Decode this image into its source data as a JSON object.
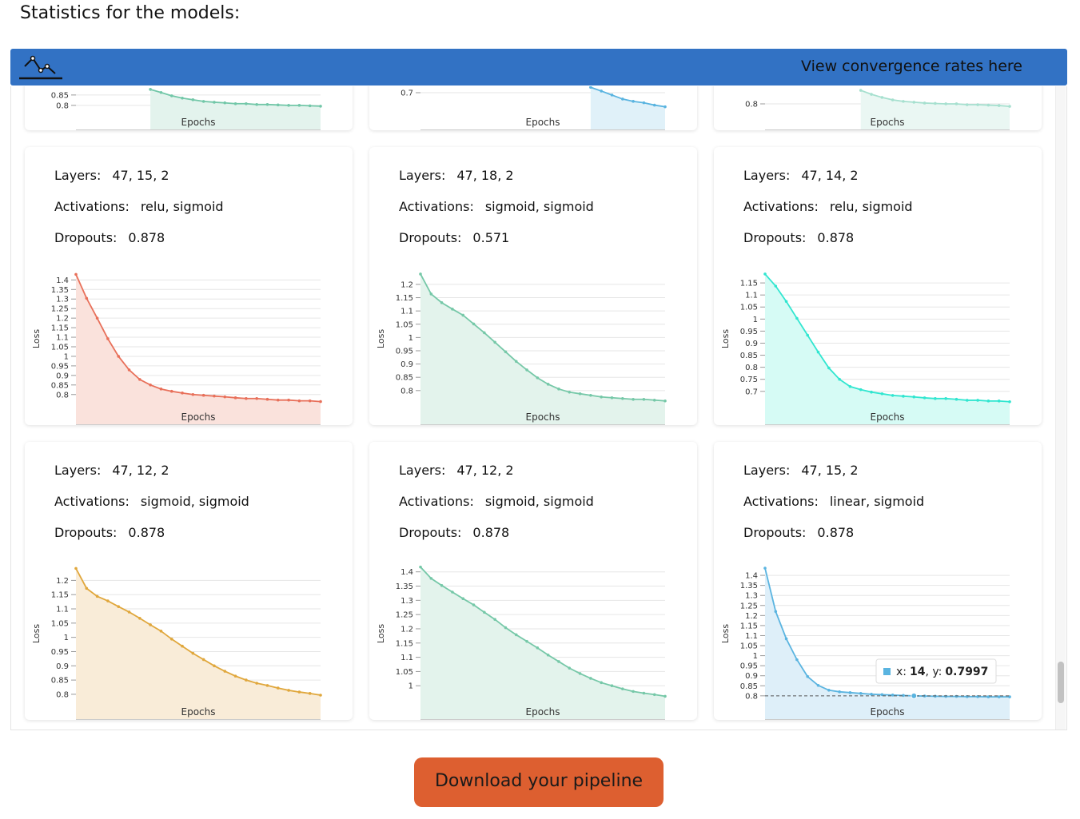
{
  "heading": "Statistics for the models:",
  "banner": {
    "text": "View convergence rates here"
  },
  "chart_data": [
    {
      "type": "area",
      "x_label": "Epochs",
      "color": "#72c7a8",
      "fill": "#e3f3ed",
      "xlim": [
        0,
        23
      ],
      "ylim": [
        0.68,
        1.435
      ],
      "yticks": [
        0.8,
        0.85
      ],
      "x": [
        7,
        8,
        9,
        10,
        11,
        12,
        13,
        14,
        15,
        16,
        17,
        18,
        19,
        20,
        21,
        22,
        23
      ],
      "values": [
        0.877,
        0.862,
        0.846,
        0.835,
        0.827,
        0.819,
        0.815,
        0.812,
        0.808,
        0.808,
        0.804,
        0.804,
        0.802,
        0.8,
        0.8,
        0.798,
        0.796
      ]
    },
    {
      "type": "area",
      "x_label": "Epochs",
      "color": "#5ab4e0",
      "fill": "#e0f1f9",
      "xlim": [
        0,
        23
      ],
      "ylim": [
        0.54,
        1.207
      ],
      "yticks": [
        0.7
      ],
      "x": [
        16,
        17,
        18,
        19,
        20,
        21,
        22,
        23
      ],
      "values": [
        0.723,
        0.707,
        0.69,
        0.673,
        0.663,
        0.657,
        0.647,
        0.64
      ]
    },
    {
      "type": "area",
      "x_label": "Epochs",
      "color": "#a6e0cf",
      "fill": "#eaf7f3",
      "xlim": [
        0,
        23
      ],
      "ylim": [
        0.673,
        1.427
      ],
      "yticks": [
        0.8
      ],
      "x": [
        9,
        10,
        11,
        12,
        13,
        14,
        15,
        16,
        17,
        18,
        19,
        20,
        21,
        22,
        23
      ],
      "values": [
        0.865,
        0.846,
        0.831,
        0.819,
        0.812,
        0.808,
        0.804,
        0.802,
        0.8,
        0.8,
        0.796,
        0.796,
        0.794,
        0.792,
        0.788
      ]
    },
    {
      "type": "area",
      "x_label": "Epochs",
      "y_label": "Loss",
      "color": "#e8705a",
      "fill": "#fae2dc",
      "xlim": [
        0,
        23
      ],
      "ylim": [
        0.64,
        1.46
      ],
      "yticks": [
        0.8,
        0.85,
        0.9,
        0.95,
        1,
        1.05,
        1.1,
        1.15,
        1.2,
        1.25,
        1.3,
        1.35,
        1.4
      ],
      "x": [
        0,
        1,
        2,
        3,
        4,
        5,
        6,
        7,
        8,
        9,
        10,
        11,
        12,
        13,
        14,
        15,
        16,
        17,
        18,
        19,
        20,
        21,
        22,
        23
      ],
      "values": [
        1.429,
        1.304,
        1.2,
        1.092,
        1.0,
        0.929,
        0.879,
        0.85,
        0.829,
        0.817,
        0.808,
        0.8,
        0.796,
        0.792,
        0.788,
        0.783,
        0.779,
        0.779,
        0.775,
        0.771,
        0.771,
        0.767,
        0.767,
        0.763
      ]
    },
    {
      "type": "area",
      "x_label": "Epochs",
      "y_label": "Loss",
      "color": "#76c8a8",
      "fill": "#e3f3ec",
      "xlim": [
        0,
        23
      ],
      "ylim": [
        0.67,
        1.26
      ],
      "yticks": [
        0.8,
        0.85,
        0.9,
        0.95,
        1,
        1.05,
        1.1,
        1.15,
        1.2
      ],
      "x": [
        0,
        1,
        2,
        3,
        4,
        5,
        6,
        7,
        8,
        9,
        10,
        11,
        12,
        13,
        14,
        15,
        16,
        17,
        18,
        19,
        20,
        21,
        22,
        23
      ],
      "values": [
        1.239,
        1.164,
        1.131,
        1.107,
        1.084,
        1.051,
        1.018,
        0.982,
        0.946,
        0.91,
        0.878,
        0.848,
        0.824,
        0.806,
        0.794,
        0.788,
        0.782,
        0.776,
        0.773,
        0.77,
        0.767,
        0.767,
        0.764,
        0.761
      ]
    },
    {
      "type": "area",
      "x_label": "Epochs",
      "y_label": "Loss",
      "color": "#31e6d0",
      "fill": "#d6fbf5",
      "xlim": [
        0,
        23
      ],
      "ylim": [
        0.56,
        1.21
      ],
      "yticks": [
        0.7,
        0.75,
        0.8,
        0.85,
        0.9,
        0.95,
        1,
        1.05,
        1.1,
        1.15
      ],
      "x": [
        0,
        1,
        2,
        3,
        4,
        5,
        6,
        7,
        8,
        9,
        10,
        11,
        12,
        13,
        14,
        15,
        16,
        17,
        18,
        19,
        20,
        21,
        22,
        23
      ],
      "values": [
        1.187,
        1.137,
        1.073,
        1.003,
        0.933,
        0.863,
        0.797,
        0.75,
        0.72,
        0.707,
        0.697,
        0.69,
        0.683,
        0.68,
        0.677,
        0.673,
        0.67,
        0.67,
        0.667,
        0.663,
        0.663,
        0.66,
        0.66,
        0.657
      ]
    },
    {
      "type": "area",
      "x_label": "Epochs",
      "y_label": "Loss",
      "color": "#e0a73c",
      "fill": "#f9ecd8",
      "xlim": [
        0,
        23
      ],
      "ylim": [
        0.71,
        1.26
      ],
      "yticks": [
        0.8,
        0.85,
        0.9,
        0.95,
        1,
        1.05,
        1.1,
        1.15,
        1.2
      ],
      "x": [
        0,
        1,
        2,
        3,
        4,
        5,
        6,
        7,
        8,
        9,
        10,
        11,
        12,
        13,
        14,
        15,
        16,
        17,
        18,
        19,
        20,
        21,
        22,
        23
      ],
      "values": [
        1.242,
        1.172,
        1.144,
        1.128,
        1.108,
        1.089,
        1.067,
        1.044,
        1.022,
        0.994,
        0.969,
        0.944,
        0.922,
        0.9,
        0.881,
        0.864,
        0.85,
        0.839,
        0.831,
        0.822,
        0.814,
        0.808,
        0.803,
        0.797
      ]
    },
    {
      "type": "area",
      "x_label": "Epochs",
      "y_label": "Loss",
      "color": "#76c8a8",
      "fill": "#e3f3ec",
      "xlim": [
        0,
        23
      ],
      "ylim": [
        0.88,
        1.43
      ],
      "yticks": [
        1,
        1.05,
        1.1,
        1.15,
        1.2,
        1.25,
        1.3,
        1.35,
        1.4
      ],
      "x": [
        0,
        1,
        2,
        3,
        4,
        5,
        6,
        7,
        8,
        9,
        10,
        11,
        12,
        13,
        14,
        15,
        16,
        17,
        18,
        19,
        20,
        21,
        22,
        23
      ],
      "values": [
        1.417,
        1.377,
        1.352,
        1.329,
        1.306,
        1.284,
        1.258,
        1.233,
        1.204,
        1.179,
        1.156,
        1.133,
        1.108,
        1.085,
        1.062,
        1.043,
        1.026,
        1.011,
        1.0,
        0.989,
        0.98,
        0.974,
        0.969,
        0.963
      ]
    },
    {
      "type": "area",
      "x_label": "Epochs",
      "y_label": "Loss",
      "color": "#5ab4e0",
      "fill": "#deeff9",
      "xlim": [
        0,
        23
      ],
      "ylim": [
        0.68,
        1.46
      ],
      "yticks": [
        0.8,
        0.85,
        0.9,
        0.95,
        1,
        1.05,
        1.1,
        1.15,
        1.2,
        1.25,
        1.3,
        1.35,
        1.4
      ],
      "x": [
        0,
        1,
        2,
        3,
        4,
        5,
        6,
        7,
        8,
        9,
        10,
        11,
        12,
        13,
        14,
        15,
        16,
        17,
        18,
        19,
        20,
        21,
        22,
        23
      ],
      "values": [
        1.436,
        1.22,
        1.084,
        0.98,
        0.896,
        0.852,
        0.828,
        0.82,
        0.816,
        0.812,
        0.808,
        0.806,
        0.804,
        0.802,
        0.7997,
        0.799,
        0.798,
        0.797,
        0.797,
        0.796,
        0.796,
        0.795,
        0.795,
        0.795
      ]
    }
  ],
  "models": [
    {
      "layers_label": "Layers:",
      "layers": "47, 15, 2",
      "activations_label": "Activations:",
      "activations": "relu, sigmoid",
      "dropouts_label": "Dropouts:",
      "dropouts": "0.878"
    },
    {
      "layers_label": "Layers:",
      "layers": "47, 18, 2",
      "activations_label": "Activations:",
      "activations": "sigmoid, sigmoid",
      "dropouts_label": "Dropouts:",
      "dropouts": "0.571"
    },
    {
      "layers_label": "Layers:",
      "layers": "47, 14, 2",
      "activations_label": "Activations:",
      "activations": "relu, sigmoid",
      "dropouts_label": "Dropouts:",
      "dropouts": "0.878"
    },
    {
      "layers_label": "Layers:",
      "layers": "47, 12, 2",
      "activations_label": "Activations:",
      "activations": "sigmoid, sigmoid",
      "dropouts_label": "Dropouts:",
      "dropouts": "0.878"
    },
    {
      "layers_label": "Layers:",
      "layers": "47, 12, 2",
      "activations_label": "Activations:",
      "activations": "sigmoid, sigmoid",
      "dropouts_label": "Dropouts:",
      "dropouts": "0.878"
    },
    {
      "layers_label": "Layers:",
      "layers": "47, 15, 2",
      "activations_label": "Activations:",
      "activations": "linear, sigmoid",
      "dropouts_label": "Dropouts:",
      "dropouts": "0.878"
    }
  ],
  "tooltip": {
    "x_text": "x:",
    "x": 14,
    "y_text": ", y:",
    "y": 0.7997
  },
  "button": "Download your pipeline"
}
